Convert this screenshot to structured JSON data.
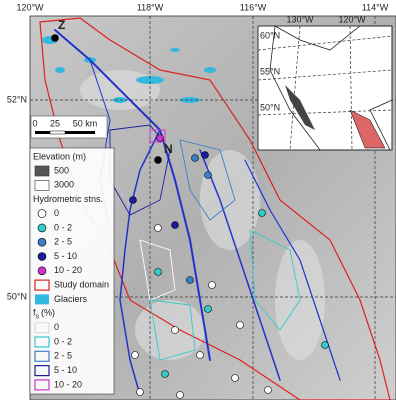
{
  "map": {
    "axis_labels": {
      "top": [
        "120°W",
        "118°W",
        "116°W",
        "114°W"
      ],
      "left": [
        "52°N",
        "50°N"
      ]
    },
    "inset": {
      "top": [
        "130°W",
        "120°W"
      ],
      "left": [
        "60°N",
        "55°N",
        "50°N"
      ]
    },
    "scale_bar": [
      "0",
      "25",
      "50 km"
    ],
    "site_labels": [
      "Z",
      "N"
    ],
    "legend": {
      "elevation": {
        "title": "Elevation (m)",
        "items": [
          {
            "label": "500",
            "color": "#555555"
          },
          {
            "label": "3000",
            "color": "#ffffff"
          }
        ]
      },
      "stations": {
        "title": "Hydrometric stns.",
        "items": [
          {
            "label": "0",
            "color": "#ffffff"
          },
          {
            "label": "0 - 2",
            "color": "#33cccc"
          },
          {
            "label": "2 - 5",
            "color": "#3a80c8"
          },
          {
            "label": "5 - 10",
            "color": "#1c1c9a"
          },
          {
            "label": "10 - 20",
            "color": "#cc33cc"
          }
        ]
      },
      "study_domain": {
        "label": "Study domain",
        "color": "#dd2222"
      },
      "glaciers": {
        "label": "Glaciers",
        "color": "#33b8e0"
      },
      "fs": {
        "title": "f",
        "subscript": "s",
        "unit": "(%)",
        "items": [
          {
            "label": "0",
            "color": "#dddddd"
          },
          {
            "label": "0 - 2",
            "color": "#33cccc"
          },
          {
            "label": "2 - 5",
            "color": "#3a80c8"
          },
          {
            "label": "5 - 10",
            "color": "#1c1c9a"
          },
          {
            "label": "10 - 20",
            "color": "#cc33cc"
          }
        ]
      }
    }
  }
}
